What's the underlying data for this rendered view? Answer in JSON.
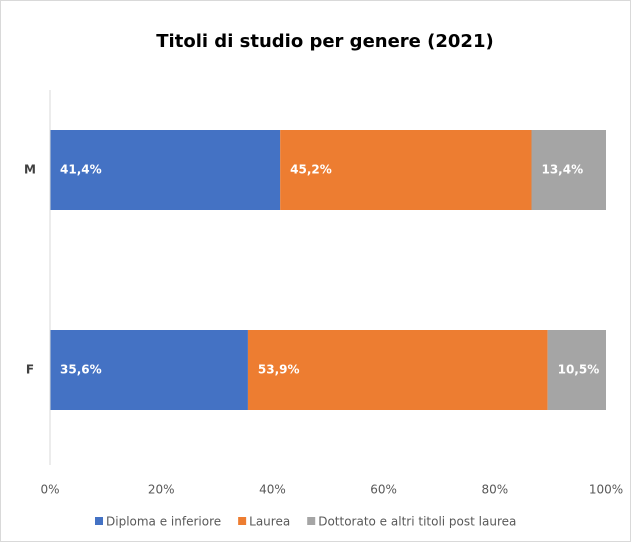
{
  "chart_data": {
    "type": "bar",
    "orientation": "horizontal",
    "stacked": true,
    "title": "Titoli di studio per genere (2021)",
    "categories": [
      "M",
      "F"
    ],
    "series": [
      {
        "name": "Diploma e inferiore",
        "color": "#4472c4",
        "values": [
          41.4,
          35.6
        ],
        "value_labels": [
          "41,4%",
          "35,6%"
        ]
      },
      {
        "name": "Laurea",
        "color": "#ed7d31",
        "values": [
          45.2,
          53.9
        ],
        "value_labels": [
          "45,2%",
          "53,9%"
        ]
      },
      {
        "name": "Dottorato e altri titoli post laurea",
        "color": "#a5a5a5",
        "values": [
          13.4,
          10.5
        ],
        "value_labels": [
          "13,4%",
          "10,5%"
        ]
      }
    ],
    "xlim": [
      0,
      100
    ],
    "xticks": [
      {
        "value": 0,
        "label": "0%"
      },
      {
        "value": 20,
        "label": "20%"
      },
      {
        "value": 40,
        "label": "40%"
      },
      {
        "value": 60,
        "label": "60%"
      },
      {
        "value": 80,
        "label": "80%"
      },
      {
        "value": 100,
        "label": "100%"
      }
    ],
    "grid": false,
    "legend": "bottom"
  }
}
